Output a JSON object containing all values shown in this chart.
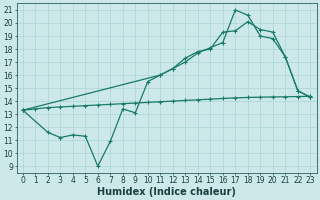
{
  "bg_color": "#cce8e8",
  "grid_color": "#aad4d4",
  "line_color": "#1a7a6a",
  "line_width": 0.9,
  "marker": "+",
  "marker_size": 3.5,
  "marker_lw": 0.8,
  "xlabel": "Humidex (Indice chaleur)",
  "xlabel_fontsize": 7,
  "tick_fontsize": 5.5,
  "xlim": [
    -0.5,
    23.5
  ],
  "ylim": [
    8.5,
    21.5
  ],
  "xticks": [
    0,
    1,
    2,
    3,
    4,
    5,
    6,
    7,
    8,
    9,
    10,
    11,
    12,
    13,
    14,
    15,
    16,
    17,
    18,
    19,
    20,
    21,
    22,
    23
  ],
  "yticks": [
    9,
    10,
    11,
    12,
    13,
    14,
    15,
    16,
    17,
    18,
    19,
    20,
    21
  ],
  "line1_x": [
    0,
    1,
    2,
    3,
    4,
    5,
    6,
    7,
    8,
    9,
    10,
    11,
    12,
    13,
    14,
    15,
    16,
    17,
    18,
    19,
    20,
    21,
    22,
    23
  ],
  "line1_y": [
    13.3,
    13.4,
    13.5,
    13.55,
    13.6,
    13.65,
    13.7,
    13.75,
    13.8,
    13.85,
    13.9,
    13.95,
    14.0,
    14.05,
    14.1,
    14.15,
    14.2,
    14.25,
    14.28,
    14.3,
    14.32,
    14.33,
    14.35,
    14.37
  ],
  "line2_x": [
    0,
    2,
    3,
    4,
    5,
    6,
    7,
    8,
    9,
    10,
    11,
    12,
    13,
    14,
    15,
    16,
    17,
    18,
    19,
    20,
    21,
    22,
    23
  ],
  "line2_y": [
    13.3,
    11.6,
    11.2,
    11.4,
    11.3,
    9.0,
    10.9,
    13.4,
    13.1,
    15.5,
    16.0,
    16.5,
    17.3,
    17.8,
    18.0,
    19.3,
    19.4,
    20.1,
    19.5,
    19.3,
    17.4,
    14.8,
    14.3
  ],
  "line3_x": [
    0,
    11,
    12,
    13,
    14,
    15,
    16,
    17,
    18,
    19,
    20,
    21,
    22,
    23
  ],
  "line3_y": [
    13.3,
    16.0,
    16.5,
    17.0,
    17.7,
    18.1,
    18.5,
    21.0,
    20.6,
    19.0,
    18.8,
    17.4,
    14.8,
    14.3
  ]
}
